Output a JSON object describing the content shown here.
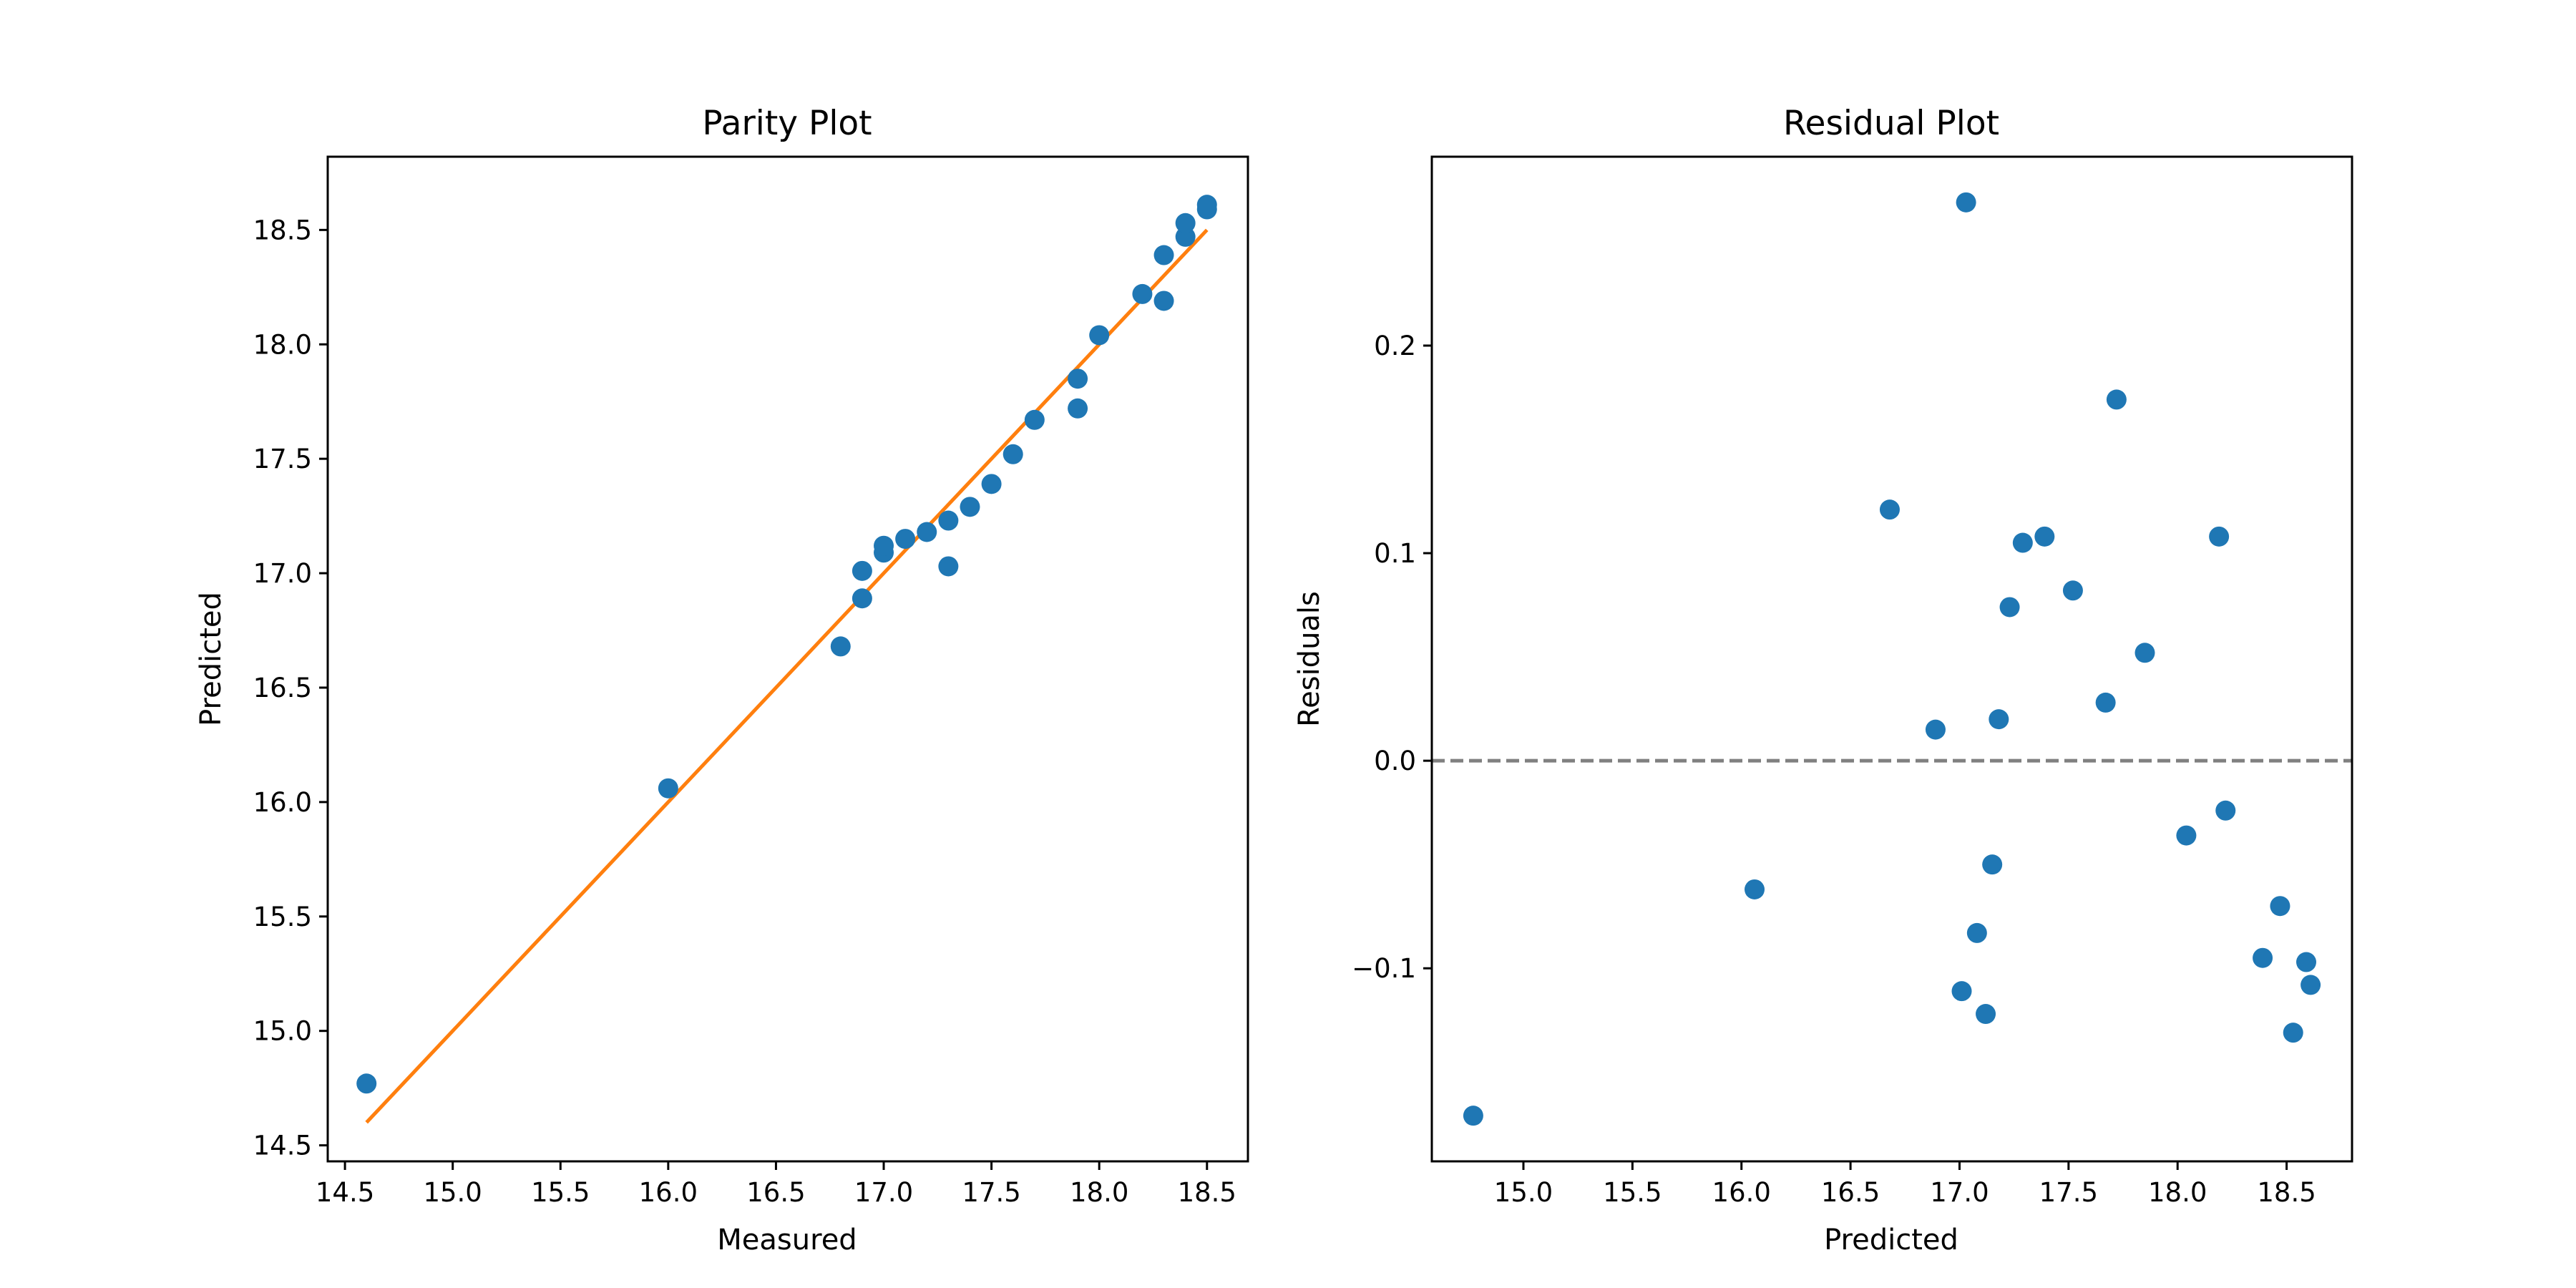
{
  "chart_data": [
    {
      "type": "scatter",
      "title": "Parity Plot",
      "xlabel": "Measured",
      "ylabel": "Predicted",
      "xlim": [
        14.42,
        18.69
      ],
      "ylim": [
        14.43,
        18.82
      ],
      "xticks": [
        14.5,
        15.0,
        15.5,
        16.0,
        16.5,
        17.0,
        17.5,
        18.0,
        18.5
      ],
      "yticks": [
        14.5,
        15.0,
        15.5,
        16.0,
        16.5,
        17.0,
        17.5,
        18.0,
        18.5
      ],
      "xtick_labels": [
        "14.5",
        "15.0",
        "15.5",
        "16.0",
        "16.5",
        "17.0",
        "17.5",
        "18.0",
        "18.5"
      ],
      "ytick_labels": [
        "14.5",
        "15.0",
        "15.5",
        "16.0",
        "16.5",
        "17.0",
        "17.5",
        "18.0",
        "18.5"
      ],
      "grid": false,
      "colors": {
        "points": "#1f77b4",
        "identity_line": "#ff7f0e"
      },
      "identity_line": {
        "x": [
          14.6,
          18.5
        ],
        "y": [
          14.6,
          18.5
        ]
      },
      "points": [
        {
          "x": 14.6,
          "y": 14.77
        },
        {
          "x": 16.0,
          "y": 16.06
        },
        {
          "x": 16.8,
          "y": 16.68
        },
        {
          "x": 16.9,
          "y": 16.89
        },
        {
          "x": 16.9,
          "y": 17.01
        },
        {
          "x": 17.0,
          "y": 17.09
        },
        {
          "x": 17.0,
          "y": 17.12
        },
        {
          "x": 17.1,
          "y": 17.15
        },
        {
          "x": 17.2,
          "y": 17.18
        },
        {
          "x": 17.3,
          "y": 17.03
        },
        {
          "x": 17.3,
          "y": 17.23
        },
        {
          "x": 17.4,
          "y": 17.29
        },
        {
          "x": 17.5,
          "y": 17.39
        },
        {
          "x": 17.6,
          "y": 17.52
        },
        {
          "x": 17.7,
          "y": 17.67
        },
        {
          "x": 17.9,
          "y": 17.72
        },
        {
          "x": 17.9,
          "y": 17.85
        },
        {
          "x": 18.0,
          "y": 18.04
        },
        {
          "x": 18.2,
          "y": 18.22
        },
        {
          "x": 18.3,
          "y": 18.19
        },
        {
          "x": 18.3,
          "y": 18.39
        },
        {
          "x": 18.4,
          "y": 18.47
        },
        {
          "x": 18.4,
          "y": 18.53
        },
        {
          "x": 18.5,
          "y": 18.59
        },
        {
          "x": 18.5,
          "y": 18.61
        }
      ]
    },
    {
      "type": "scatter",
      "title": "Residual Plot",
      "xlabel": "Predicted",
      "ylabel": "Residuals",
      "xlim": [
        14.58,
        18.8
      ],
      "ylim": [
        -0.193,
        0.291
      ],
      "xticks": [
        15.0,
        15.5,
        16.0,
        16.5,
        17.0,
        17.5,
        18.0,
        18.5
      ],
      "yticks": [
        -0.1,
        0.0,
        0.1,
        0.2
      ],
      "xtick_labels": [
        "15.0",
        "15.5",
        "16.0",
        "16.5",
        "17.0",
        "17.5",
        "18.0",
        "18.5"
      ],
      "ytick_labels": [
        "−0.1",
        "0.0",
        "0.1",
        "0.2"
      ],
      "grid": false,
      "colors": {
        "points": "#1f77b4",
        "zero_line": "#808080"
      },
      "zero_line": {
        "y": 0.0,
        "style": "dashed"
      },
      "points": [
        {
          "x": 14.77,
          "y": -0.171
        },
        {
          "x": 16.06,
          "y": -0.062
        },
        {
          "x": 16.68,
          "y": 0.121
        },
        {
          "x": 16.89,
          "y": 0.015
        },
        {
          "x": 17.01,
          "y": -0.111
        },
        {
          "x": 17.03,
          "y": 0.269
        },
        {
          "x": 17.08,
          "y": -0.083
        },
        {
          "x": 17.12,
          "y": -0.122
        },
        {
          "x": 17.15,
          "y": -0.05
        },
        {
          "x": 17.18,
          "y": 0.02
        },
        {
          "x": 17.23,
          "y": 0.074
        },
        {
          "x": 17.29,
          "y": 0.105
        },
        {
          "x": 17.39,
          "y": 0.108
        },
        {
          "x": 17.52,
          "y": 0.082
        },
        {
          "x": 17.67,
          "y": 0.028
        },
        {
          "x": 17.72,
          "y": 0.174
        },
        {
          "x": 17.85,
          "y": 0.052
        },
        {
          "x": 18.04,
          "y": -0.036
        },
        {
          "x": 18.19,
          "y": 0.108
        },
        {
          "x": 18.22,
          "y": -0.024
        },
        {
          "x": 18.39,
          "y": -0.095
        },
        {
          "x": 18.47,
          "y": -0.07
        },
        {
          "x": 18.53,
          "y": -0.131
        },
        {
          "x": 18.59,
          "y": -0.097
        },
        {
          "x": 18.61,
          "y": -0.108
        }
      ]
    }
  ]
}
